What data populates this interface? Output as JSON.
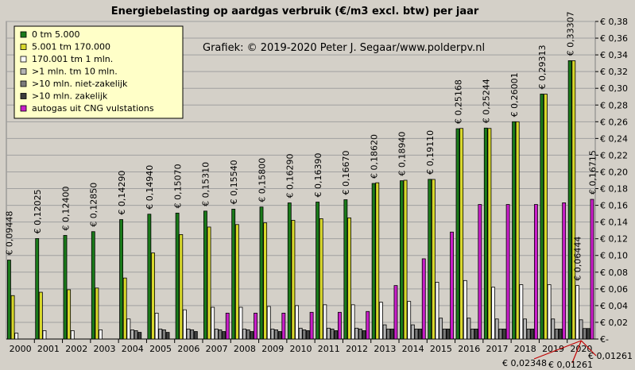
{
  "chart_data": {
    "type": "bar",
    "title": "Energiebelasting  op aardgas verbruik  (€/m3 excl. btw) per jaar",
    "credit": "Grafiek:  © 2019-2020  Peter J. Segaar/www.polderpv.nl",
    "categories": [
      "2000",
      "2001",
      "2002",
      "2003",
      "2004",
      "2005",
      "2006",
      "2007",
      "2008",
      "2009",
      "2010",
      "2011",
      "2012",
      "2013",
      "2014",
      "2015",
      "2016",
      "2017",
      "2018",
      "2019",
      "2020"
    ],
    "ylim": [
      0,
      0.38
    ],
    "yticks": [
      "€-",
      "€ 0,02",
      "€ 0,04",
      "€ 0,06",
      "€ 0,08",
      "€ 0,10",
      "€ 0,12",
      "€ 0,14",
      "€ 0,16",
      "€ 0,18",
      "€ 0,20",
      "€ 0,22",
      "€ 0,24",
      "€ 0,26",
      "€ 0,28",
      "€ 0,30",
      "€ 0,32",
      "€ 0,34",
      "€ 0,36",
      "€ 0,38"
    ],
    "ytick_values": [
      0,
      0.02,
      0.04,
      0.06,
      0.08,
      0.1,
      0.12,
      0.14,
      0.16,
      0.18,
      0.2,
      0.22,
      0.24,
      0.26,
      0.28,
      0.3,
      0.32,
      0.34,
      0.36,
      0.38
    ],
    "grid": true,
    "legend_position": "top-left",
    "series": [
      {
        "name": "0  tm 5.000",
        "color": "#1a7a1a",
        "values": [
          0.09448,
          0.12025,
          0.124,
          0.1285,
          0.1429,
          0.1494,
          0.1507,
          0.1531,
          0.1554,
          0.158,
          0.1629,
          0.1639,
          0.1667,
          0.1862,
          0.1894,
          0.1911,
          0.25168,
          0.25244,
          0.26001,
          0.29313,
          0.33307
        ]
      },
      {
        "name": "5.001 tm 170.000",
        "color": "#d8d82c",
        "values": [
          0.052,
          0.056,
          0.059,
          0.061,
          0.073,
          0.103,
          0.125,
          0.134,
          0.137,
          0.139,
          0.142,
          0.144,
          0.145,
          0.187,
          0.19,
          0.191,
          0.252,
          0.252,
          0.26,
          0.293,
          0.333
        ]
      },
      {
        "name": "170.001 tm 1 mln.",
        "color": "#f8f8f8",
        "values": [
          0.007,
          0.01,
          0.01,
          0.011,
          0.024,
          0.031,
          0.035,
          0.038,
          0.038,
          0.039,
          0.04,
          0.041,
          0.041,
          0.044,
          0.045,
          0.068,
          0.07,
          0.062,
          0.065,
          0.065,
          0.064
        ]
      },
      {
        "name": ">1 mln. tm 10 mln.",
        "color": "#b4b4b4",
        "values": [
          0,
          0,
          0,
          0,
          0.011,
          0.012,
          0.012,
          0.012,
          0.012,
          0.012,
          0.013,
          0.013,
          0.013,
          0.017,
          0.017,
          0.025,
          0.025,
          0.024,
          0.024,
          0.024,
          0.023
        ]
      },
      {
        "name": ">10 mln. niet-zakelijk",
        "color": "#7a7a7a",
        "values": [
          0,
          0,
          0,
          0,
          0.01,
          0.011,
          0.011,
          0.011,
          0.011,
          0.011,
          0.011,
          0.012,
          0.012,
          0.012,
          0.012,
          0.012,
          0.012,
          0.012,
          0.012,
          0.012,
          0.0126
        ]
      },
      {
        "name": ">10 mln. zakelijk",
        "color": "#3c3c3c",
        "values": [
          0,
          0,
          0,
          0,
          0.008,
          0.008,
          0.009,
          0.009,
          0.009,
          0.009,
          0.01,
          0.01,
          0.01,
          0.012,
          0.012,
          0.012,
          0.012,
          0.012,
          0.012,
          0.012,
          0.0126
        ]
      },
      {
        "name": "autogas uit CNG vulstations",
        "color": "#c81ec8",
        "values": [
          0,
          0,
          0,
          0,
          0,
          0,
          0,
          0.031,
          0.031,
          0.031,
          0.032,
          0.032,
          0.033,
          0.064,
          0.096,
          0.128,
          0.161,
          0.161,
          0.161,
          0.163,
          0.16715
        ]
      }
    ],
    "value_labels": [
      "€ 0,09448",
      "€ 0,12025",
      "€ 0,12400",
      "€ 0,12850",
      "€ 0,14290",
      "€ 0,14940",
      "€ 0,15070",
      "€ 0,15310",
      "€ 0,15540",
      "€ 0,15800",
      "€ 0,16290",
      "€ 0,16390",
      "€ 0,16670",
      "€ 0,18620",
      "€ 0,18940",
      "€ 0,19110",
      "€ 0,25168",
      "€ 0,25244",
      "€ 0,26001",
      "€ 0,29313",
      "€ 0,33307"
    ],
    "annotations": {
      "cng_2020": "€ 0,16715",
      "white_2020": "€ 0,06444",
      "lower_1": "€ 0,02348",
      "lower_2": "€ 0,01261",
      "lower_3": "€ 0,01261"
    }
  }
}
